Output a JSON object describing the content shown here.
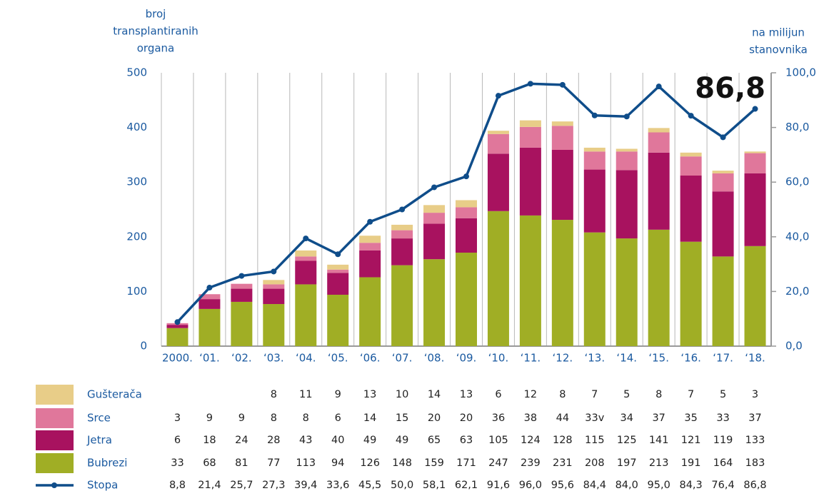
{
  "chart_data": {
    "type": "bar",
    "ylabel": [
      "broj",
      "transplantiranih",
      "organa"
    ],
    "y2label": [
      "na milijun",
      "stanovnika"
    ],
    "annotations": [
      "86,8"
    ],
    "stacked": true,
    "categories": [
      "2000.",
      "‘01.",
      "‘02.",
      "‘03.",
      "‘04.",
      "‘05.",
      "‘06.",
      "‘07.",
      "‘08.",
      "‘09.",
      "‘10.",
      "‘11.",
      "‘12.",
      "‘13.",
      "‘14.",
      "‘15.",
      "‘16.",
      "‘17.",
      "‘18."
    ],
    "series": [
      {
        "name": "Gušterača",
        "color": "#e8cd88",
        "values": [
          null,
          null,
          null,
          8,
          11,
          9,
          13,
          10,
          14,
          13,
          6,
          12,
          8,
          7,
          5,
          8,
          7,
          5,
          3
        ]
      },
      {
        "name": "Srce",
        "color": "#e0779b",
        "values": [
          3,
          9,
          9,
          8,
          8,
          6,
          14,
          15,
          20,
          20,
          36,
          38,
          44,
          33,
          34,
          37,
          35,
          33,
          37
        ],
        "value_labels": [
          "3",
          "9",
          "9",
          "8",
          "8",
          "6",
          "14",
          "15",
          "20",
          "20",
          "36",
          "38",
          "44",
          "33v",
          "34",
          "37",
          "35",
          "33",
          "37"
        ]
      },
      {
        "name": "Jetra",
        "color": "#a8125f",
        "values": [
          6,
          18,
          24,
          28,
          43,
          40,
          49,
          49,
          65,
          63,
          105,
          124,
          128,
          115,
          125,
          141,
          121,
          119,
          133
        ]
      },
      {
        "name": "Bubrezi",
        "color": "#a0ae25",
        "values": [
          33,
          68,
          81,
          77,
          113,
          94,
          126,
          148,
          159,
          171,
          247,
          239,
          231,
          208,
          197,
          213,
          191,
          164,
          183
        ]
      },
      {
        "name": "Stopa",
        "color": "#0f4d8a",
        "type": "line",
        "axis": "y2",
        "values": [
          8.8,
          21.4,
          25.7,
          27.3,
          39.4,
          33.6,
          45.5,
          50.0,
          58.1,
          62.1,
          91.6,
          96.0,
          95.6,
          84.4,
          84.0,
          95.0,
          84.3,
          76.4,
          86.8
        ],
        "value_labels": [
          "8,8",
          "21,4",
          "25,7",
          "27,3",
          "39,4",
          "33,6",
          "45,5",
          "50,0",
          "58,1",
          "62,1",
          "91,6",
          "96,0",
          "95,6",
          "84,4",
          "84,0",
          "95,0",
          "84,3",
          "76,4",
          "86,8"
        ]
      }
    ],
    "ylim": [
      0,
      500
    ],
    "yticks": [
      0,
      100,
      200,
      300,
      400,
      500
    ],
    "y2lim": [
      0,
      100
    ],
    "y2ticks": [
      {
        "value": 0,
        "label": "0,0"
      },
      {
        "value": 20,
        "label": "20,0"
      },
      {
        "value": 40,
        "label": "40,0"
      },
      {
        "value": 60,
        "label": "60,0"
      },
      {
        "value": 80,
        "label": "80,0"
      },
      {
        "value": 100,
        "label": "100,0"
      }
    ],
    "grid": true
  }
}
